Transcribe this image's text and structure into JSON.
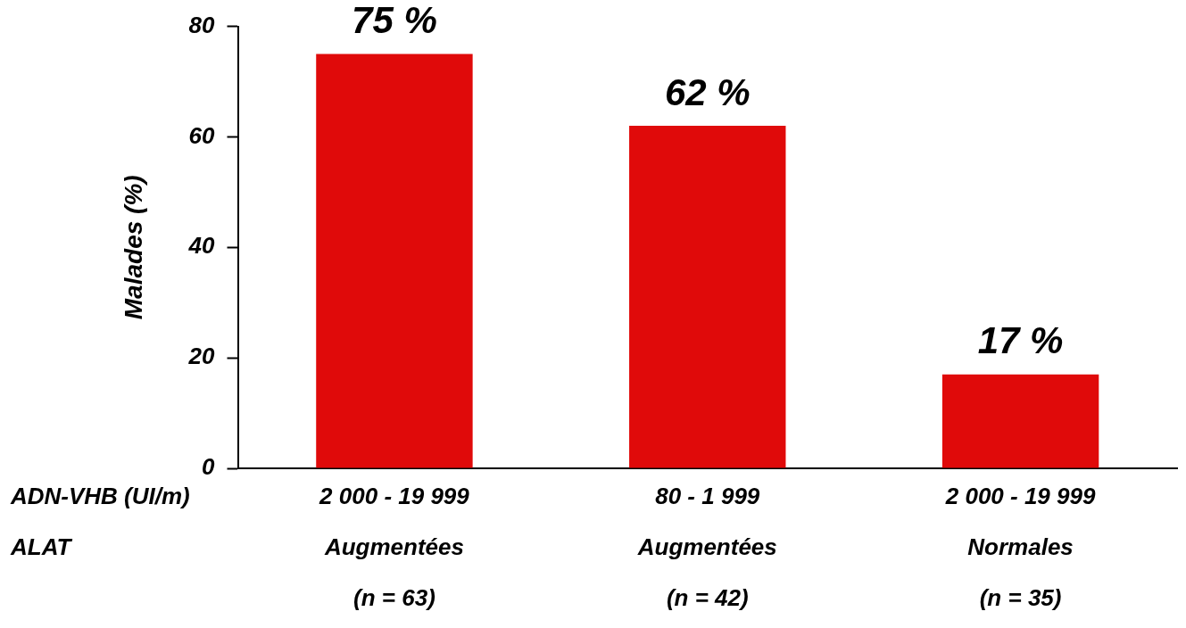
{
  "chart_data": {
    "type": "bar",
    "ylabel": "Malades (%)",
    "categories": [
      "2 000 - 19 999\nAugmentées\n(n = 63)",
      "80 - 1 999\nAugmentées\n(n = 42)",
      "2 000 - 19 999\nNormales\n(n = 35)"
    ],
    "values": [
      75,
      62,
      17
    ],
    "color": "#e00a0a",
    "value_labels": [
      "75 %",
      "62 %",
      "17 %"
    ],
    "ylim": [
      0,
      80
    ],
    "yticks": [
      0,
      20,
      40,
      60,
      80
    ],
    "grid": false,
    "legend": false,
    "annotations": [
      "ADN-VHB (UI/m)",
      "ALAT"
    ]
  }
}
